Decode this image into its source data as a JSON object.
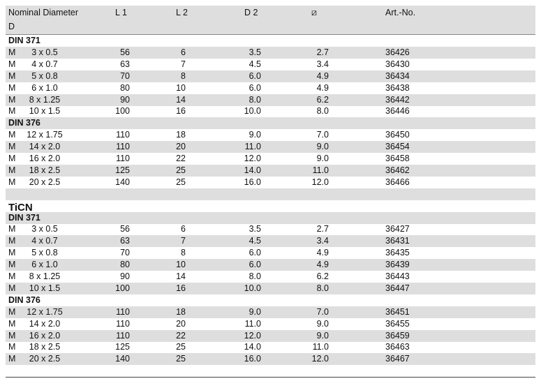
{
  "header": {
    "col0a": "Nominal Diameter",
    "col0b": "D",
    "col1": "L 1",
    "col2": "L 2",
    "col3": "D 2",
    "col4": "⧄",
    "col5": "Art.-No."
  },
  "sections": [
    {
      "groups": [
        {
          "name": "DIN 371",
          "rows": [
            [
              "M",
              "3 x 0.5",
              "56",
              "6",
              "3.5",
              "2.7",
              "36426"
            ],
            [
              "M",
              "4 x 0.7",
              "63",
              "7",
              "4.5",
              "3.4",
              "36430"
            ],
            [
              "M",
              "5 x 0.8",
              "70",
              "8",
              "6.0",
              "4.9",
              "36434"
            ],
            [
              "M",
              "6 x 1.0",
              "80",
              "10",
              "6.0",
              "4.9",
              "36438"
            ],
            [
              "M",
              "8 x 1.25",
              "90",
              "14",
              "8.0",
              "6.2",
              "36442"
            ],
            [
              "M",
              "10 x 1.5",
              "100",
              "16",
              "10.0",
              "8.0",
              "36446"
            ]
          ]
        },
        {
          "name": "DIN 376",
          "rows": [
            [
              "M",
              "12 x 1.75",
              "110",
              "18",
              "9.0",
              "7.0",
              "36450"
            ],
            [
              "M",
              "14 x 2.0",
              "110",
              "20",
              "11.0",
              "9.0",
              "36454"
            ],
            [
              "M",
              "16 x 2.0",
              "110",
              "22",
              "12.0",
              "9.0",
              "36458"
            ],
            [
              "M",
              "18 x 2.5",
              "125",
              "25",
              "14.0",
              "11.0",
              "36462"
            ],
            [
              "M",
              "20 x 2.5",
              "140",
              "25",
              "16.0",
              "12.0",
              "36466"
            ]
          ]
        }
      ]
    },
    {
      "title": "TiCN",
      "groups": [
        {
          "name": "DIN 371",
          "rows": [
            [
              "M",
              "3 x 0.5",
              "56",
              "6",
              "3.5",
              "2.7",
              "36427"
            ],
            [
              "M",
              "4 x 0.7",
              "63",
              "7",
              "4.5",
              "3.4",
              "36431"
            ],
            [
              "M",
              "5 x 0.8",
              "70",
              "8",
              "6.0",
              "4.9",
              "36435"
            ],
            [
              "M",
              "6 x 1.0",
              "80",
              "10",
              "6.0",
              "4.9",
              "36439"
            ],
            [
              "M",
              "8 x 1.25",
              "90",
              "14",
              "8.0",
              "6.2",
              "36443"
            ],
            [
              "M",
              "10 x 1.5",
              "100",
              "16",
              "10.0",
              "8.0",
              "36447"
            ]
          ]
        },
        {
          "name": "DIN 376",
          "rows": [
            [
              "M",
              "12 x 1.75",
              "110",
              "18",
              "9.0",
              "7.0",
              "36451"
            ],
            [
              "M",
              "14 x 2.0",
              "110",
              "20",
              "11.0",
              "9.0",
              "36455"
            ],
            [
              "M",
              "16 x 2.0",
              "110",
              "22",
              "12.0",
              "9.0",
              "36459"
            ],
            [
              "M",
              "18 x 2.5",
              "125",
              "25",
              "14.0",
              "11.0",
              "36463"
            ],
            [
              "M",
              "20 x 2.5",
              "140",
              "25",
              "16.0",
              "12.0",
              "36467"
            ]
          ]
        }
      ]
    }
  ]
}
